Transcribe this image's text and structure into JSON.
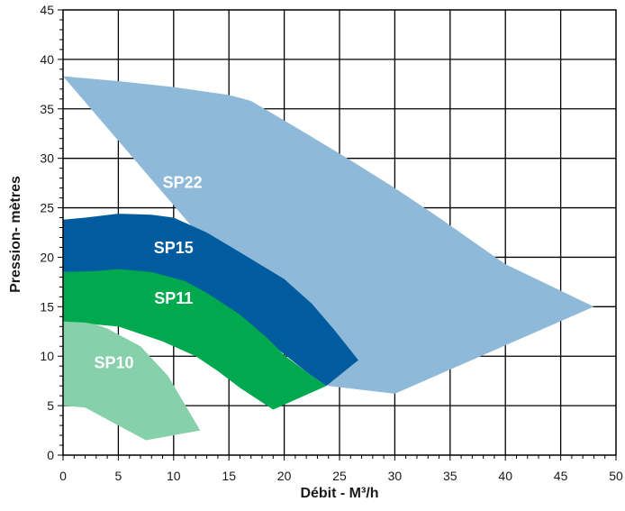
{
  "chart_data": {
    "type": "area",
    "xlabel": "Débit - M³/h",
    "ylabel": "Pression- mètres",
    "xlim": [
      0,
      50
    ],
    "ylim": [
      0,
      45
    ],
    "x_ticks": [
      0,
      5,
      10,
      15,
      20,
      25,
      30,
      35,
      40,
      45,
      50
    ],
    "y_ticks": [
      0,
      5,
      10,
      15,
      20,
      25,
      30,
      35,
      40,
      45
    ],
    "grid": true,
    "colors": {
      "SP22": "#8fb9d8",
      "SP15": "#005c9f",
      "SP11": "#00a94e",
      "SP10": "#86d0aa"
    },
    "series": [
      {
        "name": "SP22",
        "points": [
          [
            0,
            38.3
          ],
          [
            5,
            37.8
          ],
          [
            10,
            37.2
          ],
          [
            15,
            36.4
          ],
          [
            17,
            35.8
          ],
          [
            22,
            32.5
          ],
          [
            26,
            29.8
          ],
          [
            30,
            27
          ],
          [
            34,
            24
          ],
          [
            40,
            19.3
          ],
          [
            48,
            15
          ],
          [
            30,
            6.2
          ],
          [
            24,
            7
          ]
        ]
      },
      {
        "name": "SP15",
        "points": [
          [
            0,
            23.8
          ],
          [
            2,
            24
          ],
          [
            5,
            24.4
          ],
          [
            8,
            24.3
          ],
          [
            10,
            24
          ],
          [
            13,
            22.5
          ],
          [
            16,
            20.5
          ],
          [
            20,
            17.8
          ],
          [
            22.5,
            15.3
          ],
          [
            24.5,
            12.7
          ],
          [
            26.7,
            9.6
          ],
          [
            23.8,
            7
          ],
          [
            22,
            8.4
          ],
          [
            18,
            12
          ],
          [
            12,
            15.5
          ],
          [
            6,
            17.5
          ],
          [
            3,
            18.5
          ],
          [
            0,
            18.5
          ]
        ]
      },
      {
        "name": "SP11",
        "points": [
          [
            0,
            18.5
          ],
          [
            3,
            18.6
          ],
          [
            5,
            18.8
          ],
          [
            8,
            18.5
          ],
          [
            11,
            17.6
          ],
          [
            13,
            16.4
          ],
          [
            16,
            14.2
          ],
          [
            18.5,
            11.8
          ],
          [
            20,
            10.1
          ],
          [
            22,
            8.4
          ],
          [
            23.8,
            7
          ],
          [
            19,
            4.6
          ],
          [
            16,
            6.8
          ],
          [
            14,
            8.5
          ],
          [
            12,
            10
          ],
          [
            9,
            11.5
          ],
          [
            5,
            13
          ],
          [
            0,
            13.5
          ]
        ]
      },
      {
        "name": "SP10",
        "points": [
          [
            0,
            13.5
          ],
          [
            2,
            13.4
          ],
          [
            3,
            13.2
          ],
          [
            4,
            12.8
          ],
          [
            7,
            11
          ],
          [
            9.5,
            8
          ],
          [
            12.4,
            2.5
          ],
          [
            7.5,
            1.5
          ],
          [
            5,
            3
          ],
          [
            2,
            4.8
          ],
          [
            0,
            5
          ]
        ]
      }
    ],
    "annotations": [
      {
        "text": "SP22",
        "x": 10.8,
        "y": 27
      },
      {
        "text": "SP15",
        "x": 10,
        "y": 20.4
      },
      {
        "text": "SP11",
        "x": 10,
        "y": 15.3
      },
      {
        "text": "SP10",
        "x": 4.6,
        "y": 8.8
      }
    ]
  }
}
